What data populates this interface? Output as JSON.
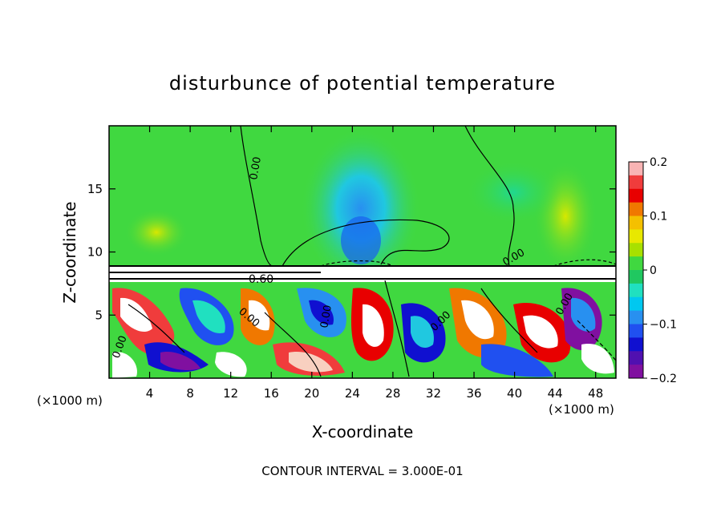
{
  "chart_data": {
    "type": "heatmap",
    "title": "disturbunce of potential temperature",
    "xlabel": "X-coordinate",
    "ylabel": "Z-coordinate",
    "x_unit": "(×1000 m)",
    "x_unit_right": "(×1000 m)",
    "footer": "CONTOUR INTERVAL = 3.000E-01",
    "xlim": [
      0,
      50
    ],
    "ylim": [
      0,
      20
    ],
    "x_ticks": [
      "4",
      "8",
      "12",
      "16",
      "20",
      "24",
      "28",
      "32",
      "36",
      "40",
      "44",
      "48"
    ],
    "y_ticks": [
      "5",
      "10",
      "15"
    ],
    "colorbar": {
      "ticks": [
        "0.2",
        "0.1",
        "0",
        "−0.1",
        "−0.2"
      ],
      "range": [
        -0.2,
        0.2
      ],
      "colors": [
        "#f8b4b4",
        "#f03c3c",
        "#e80000",
        "#f07800",
        "#f4c000",
        "#e8e800",
        "#a8e000",
        "#40d840",
        "#20c860",
        "#20e0c0",
        "#00c8f0",
        "#2890f0",
        "#2050f0",
        "#1010d0",
        "#5010b0",
        "#8010a0"
      ]
    },
    "contour_labels": [
      "0.00",
      "0.00",
      "0.60",
      "0.00",
      "0.00",
      "0.00",
      "0.00",
      "0.00"
    ]
  }
}
